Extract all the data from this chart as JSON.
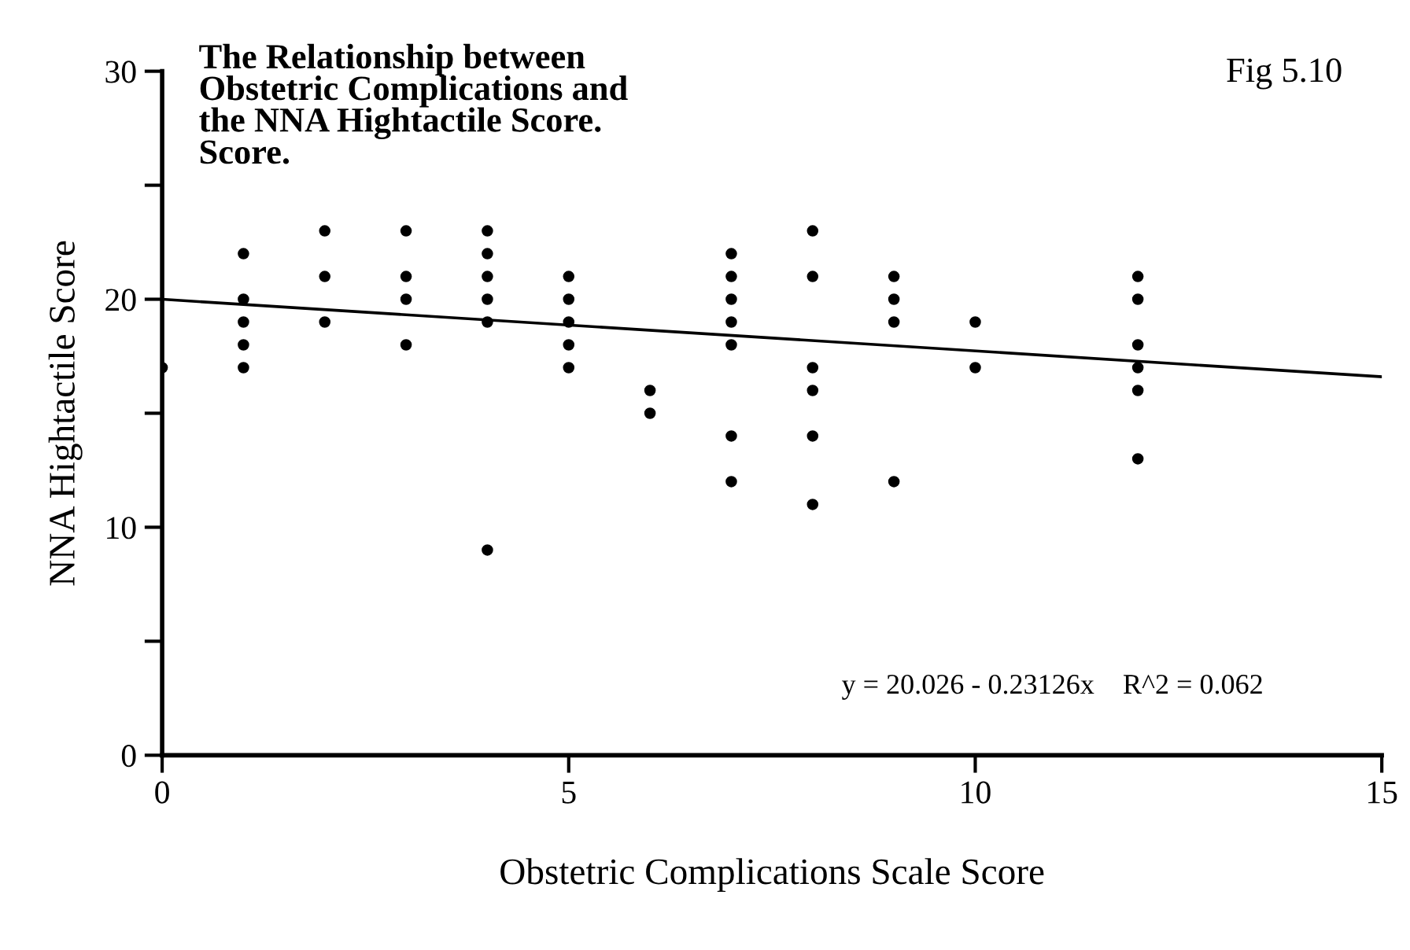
{
  "chart_data": {
    "type": "scatter",
    "title": "The Relationship between\nObstetric Complications and\nthe NNA Hightactile Score.\nScore.",
    "xlabel": "Obstetric Complications Scale Score",
    "ylabel": "NNA Hightactile Score",
    "annotations": [
      "Fig 5.10",
      "y = 20.026 - 0.23126x    R^2 = 0.062"
    ],
    "series": [
      {
        "color": "#000000",
        "marker": "circle",
        "x": [
          0,
          1,
          1,
          1,
          1,
          1,
          2,
          2,
          2,
          3,
          3,
          3,
          3,
          4,
          4,
          4,
          4,
          4,
          4,
          5,
          5,
          5,
          5,
          5,
          6,
          6,
          7,
          7,
          7,
          7,
          7,
          7,
          7,
          8,
          8,
          8,
          8,
          8,
          8,
          9,
          9,
          9,
          9,
          10,
          10,
          12,
          12,
          12,
          12,
          12,
          12
        ],
        "values": [
          17,
          22,
          20,
          19,
          18,
          17,
          23,
          21,
          19,
          23,
          21,
          20,
          18,
          23,
          22,
          21,
          20,
          19,
          9,
          21,
          20,
          19,
          18,
          17,
          16,
          15,
          22,
          21,
          20,
          19,
          18,
          14,
          12,
          23,
          21,
          17,
          16,
          14,
          11,
          21,
          20,
          19,
          12,
          19,
          17,
          21,
          20,
          18,
          17,
          16,
          13
        ]
      },
      {
        "type": "line",
        "color": "#000000",
        "marker": "none",
        "line_style": "solid",
        "x": [
          0,
          15
        ],
        "values": [
          20.0,
          16.6
        ]
      }
    ],
    "xlim": [
      0,
      15
    ],
    "ylim": [
      0,
      30
    ],
    "xticks": [
      0,
      5,
      10,
      15
    ],
    "yticks": [
      0,
      {
        "value": 5,
        "label": null
      },
      10,
      {
        "value": 15,
        "label": null
      },
      20,
      {
        "value": 25,
        "label": null
      },
      30
    ],
    "grid": false,
    "legend": false
  }
}
